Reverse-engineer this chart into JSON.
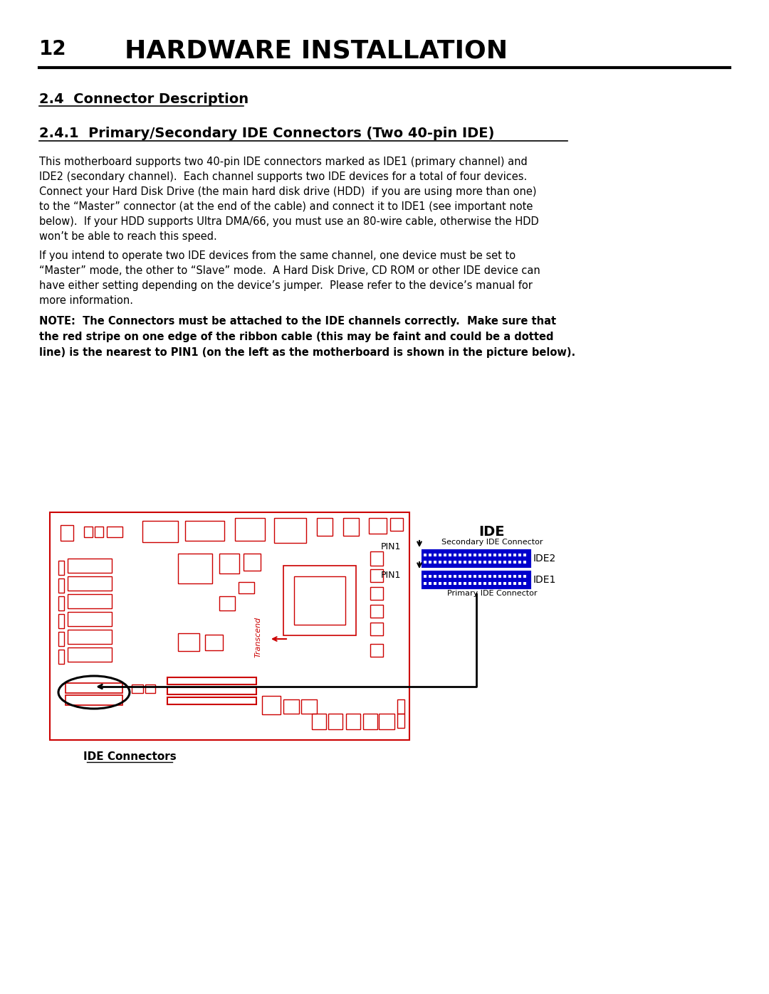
{
  "page_number": "12",
  "main_title": "HARDWARE INSTALLATION",
  "section_title": "2.4  Connector Description",
  "subsection_title": "2.4.1  Primary/Secondary IDE Connectors (Two 40-pin IDE)",
  "body1_lines": [
    "This motherboard supports two 40-pin IDE connectors marked as IDE1 (primary channel) and",
    "IDE2 (secondary channel).  Each channel supports two IDE devices for a total of four devices.",
    "Connect your Hard Disk Drive (the main hard disk drive (HDD)  if you are using more than one)",
    "to the “Master” connector (at the end of the cable) and connect it to IDE1 (see important note",
    "below).  If your HDD supports Ultra DMA/66, you must use an 80-wire cable, otherwise the HDD",
    "won’t be able to reach this speed."
  ],
  "body2_lines": [
    "If you intend to operate two IDE devices from the same channel, one device must be set to",
    "“Master” mode, the other to “Slave” mode.  A Hard Disk Drive, CD ROM or other IDE device can",
    "have either setting depending on the device’s jumper.  Please refer to the device’s manual for",
    "more information."
  ],
  "note_lines": [
    "NOTE:  The Connectors must be attached to the IDE channels correctly.  Make sure that",
    "the red stripe on one edge of the ribbon cable (this may be faint and could be a dotted",
    "line) is the nearest to PIN1 (on the left as the motherboard is shown in the picture below)."
  ],
  "diagram_caption": "IDE Connectors",
  "ide_label": "IDE",
  "secondary_label": "Secondary IDE Connector",
  "primary_label": "Primary IDE Connector",
  "ide2_label": "IDE2",
  "ide1_label": "IDE1",
  "pin1_label": "PIN1",
  "transcend_label": "Transcend",
  "bg_color": "#ffffff",
  "text_color": "#000000",
  "red_color": "#cc0000",
  "blue_color": "#0000cc"
}
